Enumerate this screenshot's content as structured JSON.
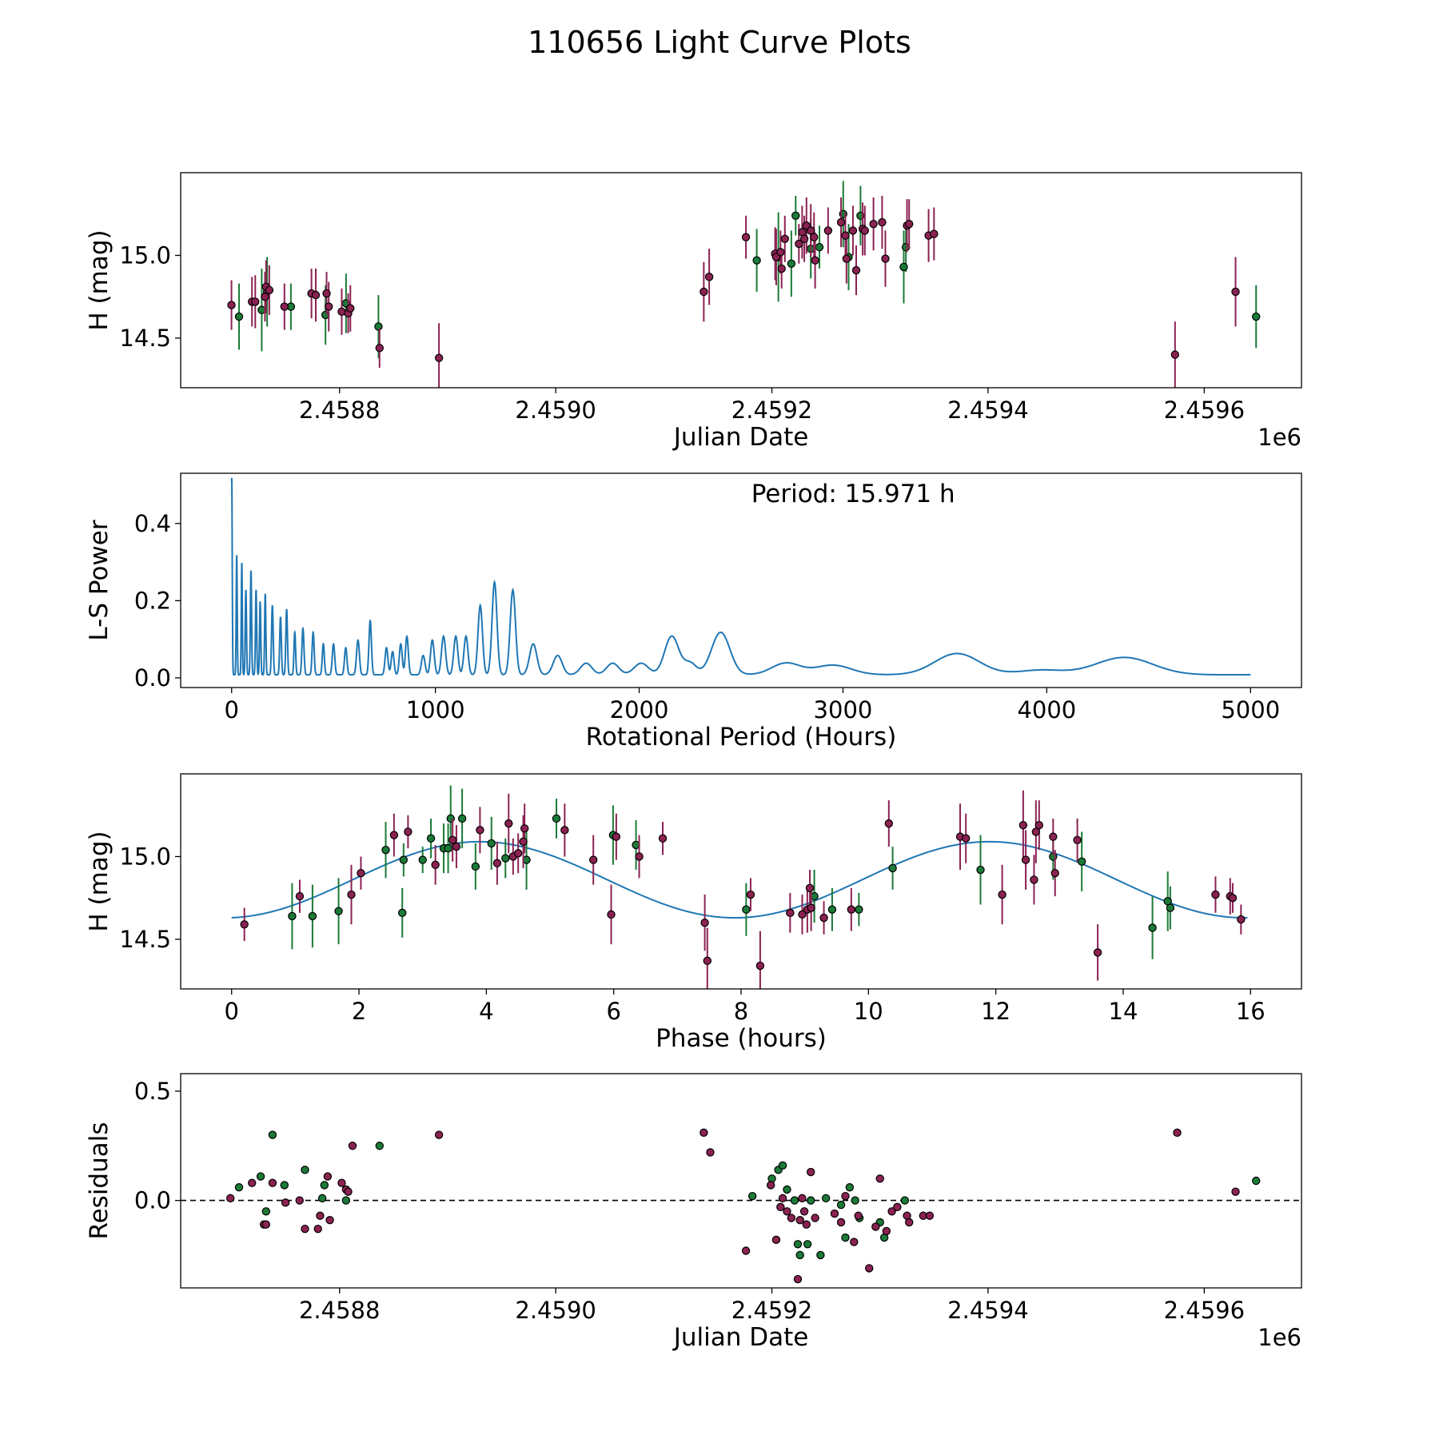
{
  "figure": {
    "title": "110656 Light Curve Plots"
  },
  "colors": {
    "green": "#1b7a37",
    "magenta": "#8b2252",
    "curve": "#1f77b4",
    "marker_edge": "#000000"
  },
  "chart_data": [
    {
      "id": "raw",
      "type": "scatter",
      "title": "",
      "xlabel": "Julian Date",
      "ylabel": "H (mag)",
      "x_offset_label": "1e6",
      "xlim": [
        2458653,
        2459690
      ],
      "ylim": [
        14.2,
        15.5
      ],
      "y_inverted": false,
      "xticks": [
        2458800,
        2459000,
        2459200,
        2459400,
        2459600
      ],
      "xtick_labels": [
        "2.4588",
        "2.4590",
        "2.4592",
        "2.4594",
        "2.4596"
      ],
      "yticks": [
        14.5,
        15.0
      ],
      "ytick_labels": [
        "14.5",
        "15.0"
      ],
      "series": [
        {
          "name": "green filter",
          "color": "#1b7a37",
          "x": [
            2458707,
            2458728,
            2458733,
            2458755,
            2458787,
            2458806,
            2458836,
            2459186,
            2459206,
            2459218,
            2459222,
            2459236,
            2459244,
            2459266,
            2459271,
            2459282,
            2459322,
            2459324,
            2459648
          ],
          "y": [
            14.63,
            14.67,
            14.78,
            14.69,
            14.64,
            14.71,
            14.57,
            14.97,
            14.99,
            14.95,
            15.24,
            15.04,
            15.05,
            15.25,
            14.99,
            15.24,
            14.93,
            15.05,
            14.63
          ],
          "err": [
            0.2,
            0.25,
            0.21,
            0.14,
            0.18,
            0.18,
            0.19,
            0.19,
            0.27,
            0.2,
            0.12,
            0.18,
            0.13,
            0.2,
            0.2,
            0.18,
            0.22,
            0.15,
            0.19
          ]
        },
        {
          "name": "magenta filter",
          "color": "#8b2252",
          "x": [
            2458700,
            2458719,
            2458722,
            2458731,
            2458732,
            2458735,
            2458749,
            2458774,
            2458778,
            2458788,
            2458790,
            2458802,
            2458808,
            2458810,
            2458837,
            2458892,
            2459137,
            2459142,
            2459176,
            2459203,
            2459204,
            2459208,
            2459209,
            2459212,
            2459225,
            2459228,
            2459230,
            2459232,
            2459236,
            2459239,
            2459240,
            2459252,
            2459264,
            2459268,
            2459269,
            2459275,
            2459278,
            2459284,
            2459286,
            2459294,
            2459302,
            2459305,
            2459325,
            2459327,
            2459345,
            2459350,
            2459573,
            2459629
          ],
          "y": [
            14.7,
            14.72,
            14.72,
            14.75,
            14.81,
            14.79,
            14.69,
            14.77,
            14.76,
            14.77,
            14.69,
            14.66,
            14.65,
            14.68,
            14.44,
            14.38,
            14.78,
            14.87,
            15.11,
            15.01,
            14.99,
            15.02,
            14.92,
            15.1,
            15.07,
            15.14,
            15.1,
            15.18,
            15.15,
            15.11,
            14.97,
            15.15,
            15.2,
            15.12,
            14.98,
            15.15,
            14.91,
            15.16,
            15.15,
            15.19,
            15.2,
            14.98,
            15.18,
            15.19,
            15.12,
            15.13,
            14.4,
            14.78
          ],
          "err": [
            0.15,
            0.15,
            0.16,
            0.15,
            0.16,
            0.15,
            0.14,
            0.15,
            0.16,
            0.13,
            0.15,
            0.14,
            0.12,
            0.14,
            0.12,
            0.21,
            0.18,
            0.17,
            0.13,
            0.16,
            0.17,
            0.13,
            0.12,
            0.14,
            0.12,
            0.16,
            0.14,
            0.17,
            0.16,
            0.15,
            0.17,
            0.14,
            0.15,
            0.14,
            0.15,
            0.15,
            0.15,
            0.16,
            0.15,
            0.16,
            0.16,
            0.17,
            0.16,
            0.15,
            0.16,
            0.16,
            0.2,
            0.21
          ]
        }
      ]
    },
    {
      "id": "periodogram",
      "type": "line",
      "xlabel": "Rotational Period (Hours)",
      "ylabel": "L-S Power",
      "annotation": "Period: 15.971 h",
      "xlim": [
        -250,
        5250
      ],
      "ylim": [
        -0.025,
        0.53
      ],
      "xticks": [
        0,
        1000,
        2000,
        3000,
        4000,
        5000
      ],
      "xtick_labels": [
        "0",
        "1000",
        "2000",
        "3000",
        "4000",
        "5000"
      ],
      "yticks": [
        0.0,
        0.2,
        0.4
      ],
      "ytick_labels": [
        "0.0",
        "0.2",
        "0.4"
      ],
      "series": [
        {
          "name": "L-S Power",
          "color": "#1f77b4",
          "peaks": [
            [
              0.5,
              0.51,
              2.5
            ],
            [
              25,
              0.31,
              2.5
            ],
            [
              50,
              0.29,
              2.5
            ],
            [
              70,
              0.22,
              3
            ],
            [
              95,
              0.27,
              3
            ],
            [
              120,
              0.22,
              3
            ],
            [
              140,
              0.19,
              3
            ],
            [
              165,
              0.21,
              3
            ],
            [
              200,
              0.18,
              4
            ],
            [
              240,
              0.15,
              4
            ],
            [
              270,
              0.17,
              4
            ],
            [
              310,
              0.11,
              4
            ],
            [
              350,
              0.12,
              5
            ],
            [
              400,
              0.11,
              5
            ],
            [
              450,
              0.08,
              5
            ],
            [
              500,
              0.08,
              6
            ],
            [
              560,
              0.07,
              6
            ],
            [
              620,
              0.09,
              7
            ],
            [
              680,
              0.14,
              6
            ],
            [
              760,
              0.07,
              7
            ],
            [
              790,
              0.06,
              7
            ],
            [
              830,
              0.08,
              7
            ],
            [
              860,
              0.1,
              7
            ],
            [
              940,
              0.05,
              9
            ],
            [
              985,
              0.09,
              9
            ],
            [
              1040,
              0.1,
              10
            ],
            [
              1100,
              0.1,
              10
            ],
            [
              1150,
              0.1,
              10
            ],
            [
              1220,
              0.18,
              11
            ],
            [
              1290,
              0.24,
              12
            ],
            [
              1380,
              0.22,
              13
            ],
            [
              1480,
              0.08,
              18
            ],
            [
              1600,
              0.05,
              22
            ],
            [
              1740,
              0.03,
              28
            ],
            [
              1870,
              0.03,
              30
            ],
            [
              2010,
              0.03,
              35
            ],
            [
              2160,
              0.1,
              35
            ],
            [
              2250,
              0.03,
              30
            ],
            [
              2400,
              0.11,
              45
            ],
            [
              2720,
              0.03,
              70
            ],
            [
              2950,
              0.025,
              90
            ],
            [
              3560,
              0.055,
              110
            ],
            [
              3970,
              0.012,
              110
            ],
            [
              4380,
              0.045,
              140
            ]
          ],
          "baseline": 0.008
        }
      ]
    },
    {
      "id": "phased",
      "type": "scatter",
      "xlabel": "Phase (hours)",
      "ylabel": "H (mag)",
      "xlim": [
        -0.8,
        16.8
      ],
      "ylim": [
        14.2,
        15.5
      ],
      "xticks": [
        0,
        2,
        4,
        6,
        8,
        10,
        12,
        14,
        16
      ],
      "xtick_labels": [
        "0",
        "2",
        "4",
        "6",
        "8",
        "10",
        "12",
        "14",
        "16"
      ],
      "yticks": [
        14.5,
        15.0
      ],
      "ytick_labels": [
        "14.5",
        "15.0"
      ],
      "model": {
        "name": "fit",
        "color": "#1f77b4",
        "x_range": [
          0,
          15.971
        ],
        "mean": 14.86,
        "amplitude": 0.23,
        "period": 8.0,
        "peak_phase": 3.9
      },
      "series": [
        {
          "name": "green filter",
          "color": "#1b7a37",
          "x": [
            0.95,
            1.27,
            1.68,
            2.42,
            2.68,
            2.7,
            3.0,
            3.13,
            3.33,
            3.4,
            3.44,
            3.62,
            3.83,
            4.08,
            4.3,
            4.63,
            5.1,
            5.99,
            6.35,
            8.08,
            9.15,
            9.43,
            9.85,
            10.38,
            11.76,
            12.9,
            13.35,
            14.46,
            14.7,
            14.74
          ],
          "y": [
            14.64,
            14.64,
            14.67,
            15.04,
            14.66,
            14.98,
            14.98,
            15.11,
            15.05,
            15.05,
            15.23,
            15.23,
            14.94,
            15.08,
            14.99,
            14.98,
            15.23,
            15.13,
            15.07,
            14.68,
            14.76,
            14.68,
            14.68,
            14.93,
            14.92,
            15.0,
            14.97,
            14.57,
            14.73,
            14.69
          ],
          "err": [
            0.2,
            0.19,
            0.2,
            0.17,
            0.15,
            0.1,
            0.08,
            0.12,
            0.15,
            0.15,
            0.2,
            0.18,
            0.14,
            0.16,
            0.12,
            0.18,
            0.12,
            0.18,
            0.15,
            0.16,
            0.16,
            0.13,
            0.1,
            0.13,
            0.21,
            0.14,
            0.18,
            0.19,
            0.18,
            0.13
          ]
        },
        {
          "name": "magenta filter",
          "color": "#8b2252",
          "x": [
            0.2,
            1.07,
            1.88,
            2.03,
            2.55,
            2.77,
            3.2,
            3.47,
            3.53,
            3.9,
            4.17,
            4.35,
            4.42,
            4.5,
            4.58,
            4.6,
            5.23,
            5.68,
            5.96,
            6.04,
            6.4,
            6.77,
            7.43,
            7.47,
            8.15,
            8.3,
            8.77,
            8.96,
            9.04,
            9.08,
            9.3,
            9.1,
            9.73,
            10.32,
            11.44,
            11.53,
            12.1,
            12.43,
            12.47,
            12.6,
            12.63,
            12.68,
            12.9,
            12.93,
            13.28,
            13.6,
            15.45,
            15.68,
            15.72,
            15.85
          ],
          "y": [
            14.59,
            14.76,
            14.77,
            14.9,
            15.13,
            15.15,
            14.95,
            15.1,
            15.06,
            15.16,
            14.96,
            15.2,
            15.0,
            15.02,
            15.09,
            15.17,
            15.16,
            14.98,
            14.65,
            15.12,
            15.0,
            15.11,
            14.6,
            14.37,
            14.77,
            14.34,
            14.66,
            14.65,
            14.68,
            14.81,
            14.63,
            14.69,
            14.68,
            15.2,
            15.12,
            15.11,
            14.77,
            15.19,
            14.98,
            14.86,
            15.15,
            15.19,
            15.12,
            14.9,
            15.1,
            14.42,
            14.77,
            14.76,
            14.75,
            14.62
          ],
          "err": [
            0.1,
            0.1,
            0.18,
            0.1,
            0.13,
            0.1,
            0.12,
            0.13,
            0.13,
            0.14,
            0.13,
            0.18,
            0.11,
            0.12,
            0.16,
            0.15,
            0.16,
            0.15,
            0.18,
            0.14,
            0.13,
            0.1,
            0.17,
            0.2,
            0.1,
            0.21,
            0.12,
            0.12,
            0.14,
            0.11,
            0.1,
            0.14,
            0.13,
            0.14,
            0.2,
            0.15,
            0.18,
            0.21,
            0.18,
            0.15,
            0.19,
            0.15,
            0.11,
            0.14,
            0.13,
            0.17,
            0.11,
            0.11,
            0.09,
            0.09
          ]
        }
      ]
    },
    {
      "id": "residuals",
      "type": "scatter",
      "xlabel": "Julian Date",
      "ylabel": "Residuals",
      "x_offset_label": "1e6",
      "xlim": [
        2458653,
        2459690
      ],
      "ylim": [
        -0.4,
        0.58
      ],
      "xticks": [
        2458800,
        2459000,
        2459200,
        2459400,
        2459600
      ],
      "xtick_labels": [
        "2.4588",
        "2.4590",
        "2.4592",
        "2.4594",
        "2.4596"
      ],
      "yticks": [
        0.0,
        0.5
      ],
      "ytick_labels": [
        "0.0",
        "0.5"
      ],
      "reference_line": {
        "y": 0.0,
        "style": "dashed",
        "color": "#000000"
      },
      "series": [
        {
          "name": "green filter",
          "color": "#1b7a37",
          "x": [
            2458707,
            2458727,
            2458732,
            2458738,
            2458749,
            2458768,
            2458784,
            2458786,
            2458806,
            2458837,
            2459182,
            2459200,
            2459206,
            2459210,
            2459214,
            2459221,
            2459224,
            2459226,
            2459233,
            2459236,
            2459245,
            2459250,
            2459264,
            2459268,
            2459272,
            2459277,
            2459281,
            2459300,
            2459304,
            2459323,
            2459648
          ],
          "y": [
            0.06,
            0.11,
            -0.05,
            0.3,
            0.07,
            0.14,
            0.01,
            0.07,
            0.0,
            0.25,
            0.02,
            0.1,
            0.14,
            0.16,
            0.05,
            0.0,
            -0.2,
            -0.25,
            -0.2,
            0.0,
            -0.25,
            0.01,
            -0.02,
            -0.17,
            0.06,
            0.0,
            -0.08,
            -0.1,
            -0.17,
            0.0,
            0.09
          ]
        },
        {
          "name": "magenta filter",
          "color": "#8b2252",
          "x": [
            2458699,
            2458719,
            2458730,
            2458732,
            2458738,
            2458750,
            2458763,
            2458768,
            2458780,
            2458782,
            2458789,
            2458791,
            2458802,
            2458806,
            2458808,
            2458812,
            2458892,
            2459137,
            2459143,
            2459176,
            2459199,
            2459204,
            2459208,
            2459210,
            2459214,
            2459218,
            2459224,
            2459226,
            2459228,
            2459230,
            2459232,
            2459236,
            2459240,
            2459258,
            2459264,
            2459268,
            2459276,
            2459280,
            2459290,
            2459296,
            2459300,
            2459306,
            2459311,
            2459316,
            2459325,
            2459327,
            2459340,
            2459346,
            2459575,
            2459629
          ],
          "y": [
            0.01,
            0.08,
            -0.11,
            -0.11,
            0.08,
            -0.01,
            0.0,
            -0.13,
            -0.13,
            -0.07,
            0.11,
            -0.09,
            0.08,
            0.05,
            0.04,
            0.25,
            0.3,
            0.31,
            0.22,
            -0.23,
            0.07,
            -0.18,
            -0.03,
            0.01,
            -0.05,
            -0.08,
            -0.36,
            -0.09,
            0.01,
            -0.05,
            -0.11,
            0.13,
            -0.08,
            -0.06,
            -0.1,
            0.02,
            -0.19,
            -0.07,
            -0.31,
            -0.12,
            0.1,
            -0.14,
            -0.05,
            -0.03,
            -0.07,
            -0.1,
            -0.07,
            -0.07,
            0.31,
            0.04
          ]
        }
      ]
    }
  ]
}
